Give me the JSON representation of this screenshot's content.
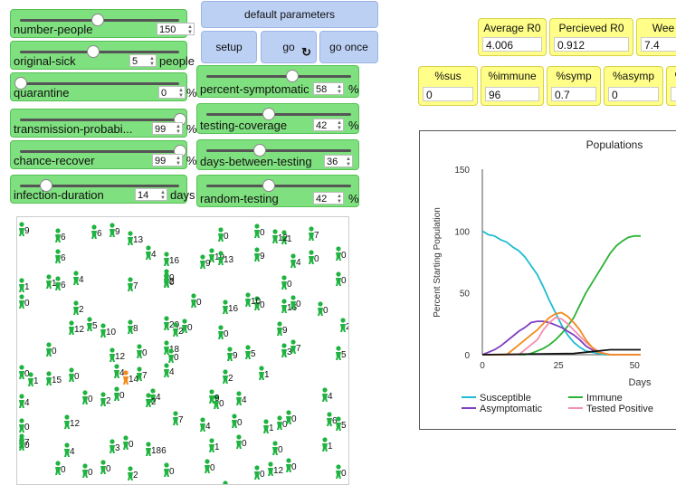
{
  "sliders": [
    {
      "id": "number-people",
      "label": "number-people",
      "value": "150",
      "unit": "",
      "frac": 0.48
    },
    {
      "id": "original-sick",
      "label": "original-sick",
      "value": "5",
      "unit": "people",
      "frac": 0.45
    },
    {
      "id": "quarantine",
      "label": "quarantine",
      "value": "0",
      "unit": "%",
      "frac": 0.0
    },
    {
      "id": "transmission",
      "label": "transmission-probabi...",
      "value": "99",
      "unit": "%",
      "frac": 0.99
    },
    {
      "id": "chance-recover",
      "label": "chance-recover",
      "value": "99",
      "unit": "%",
      "frac": 0.99
    },
    {
      "id": "infection-duration",
      "label": "infection-duration",
      "value": "14",
      "unit": "days",
      "frac": 0.16
    },
    {
      "id": "percent-symptomatic",
      "label": "percent-symptomatic",
      "value": "58",
      "unit": "%",
      "frac": 0.58
    },
    {
      "id": "testing-coverage",
      "label": "testing-coverage",
      "value": "42",
      "unit": "%",
      "frac": 0.42
    },
    {
      "id": "days-between-testing",
      "label": "days-between-testing",
      "value": "36",
      "unit": "",
      "frac": 0.36
    },
    {
      "id": "random-testing",
      "label": "random-testing",
      "value": "42",
      "unit": "%",
      "frac": 0.42
    }
  ],
  "buttons": {
    "defaults": "default parameters",
    "setup": "setup",
    "go": "go",
    "go_once": "go once"
  },
  "monitors": [
    {
      "id": "average-r0",
      "label": "Average R0",
      "value": "4.006"
    },
    {
      "id": "perceived-r0",
      "label": "Percieved R0",
      "value": "0.912"
    },
    {
      "id": "weeks",
      "label": "Wee",
      "value": "7.4"
    },
    {
      "id": "pct-sus",
      "label": "%sus",
      "value": "0"
    },
    {
      "id": "pct-immune",
      "label": "%immune",
      "value": "96"
    },
    {
      "id": "pct-symp",
      "label": "%symp",
      "value": "0.7"
    },
    {
      "id": "pct-asymp",
      "label": "%asymp",
      "value": "0"
    },
    {
      "id": "pct-extra",
      "label": "%",
      "value": ""
    }
  ],
  "world": {
    "agent_color": "#1fb340",
    "infected_color": "#f28a1c",
    "people": [
      [
        "5",
        "9"
      ],
      [
        "45",
        "6"
      ],
      [
        "85",
        "6"
      ],
      [
        "125",
        "13"
      ],
      [
        "225",
        "0"
      ],
      [
        "265",
        "0"
      ],
      [
        "295",
        "1"
      ],
      [
        "325",
        "7"
      ],
      [
        "105",
        "9"
      ],
      [
        "285",
        "12"
      ],
      [
        "45",
        "6"
      ],
      [
        "145",
        "4"
      ],
      [
        "165",
        "16"
      ],
      [
        "215",
        "19"
      ],
      [
        "205",
        "9"
      ],
      [
        "225",
        "13"
      ],
      [
        "265",
        "9"
      ],
      [
        "305",
        "4"
      ],
      [
        "325",
        "0"
      ],
      [
        "355",
        "0"
      ],
      [
        "45",
        "6"
      ],
      [
        "165",
        "2"
      ],
      [
        "165",
        "0"
      ],
      [
        "295",
        "0"
      ],
      [
        "355",
        "0"
      ],
      [
        "5",
        "1"
      ],
      [
        "35",
        "1"
      ],
      [
        "65",
        "4"
      ],
      [
        "125",
        "7"
      ],
      [
        "165",
        "0"
      ],
      [
        "195",
        "0"
      ],
      [
        "230",
        "16"
      ],
      [
        "265",
        "0"
      ],
      [
        "255",
        "10"
      ],
      [
        "295",
        "16"
      ],
      [
        "305",
        "0"
      ],
      [
        "335",
        "0"
      ],
      [
        "375",
        "6"
      ],
      [
        "5",
        "0"
      ],
      [
        "65",
        "2"
      ],
      [
        "60",
        "12"
      ],
      [
        "80",
        "5"
      ],
      [
        "95",
        "10"
      ],
      [
        "125",
        "8"
      ],
      [
        "165",
        "20"
      ],
      [
        "175",
        "2"
      ],
      [
        "185",
        "0"
      ],
      [
        "225",
        "0"
      ],
      [
        "290",
        "9"
      ],
      [
        "360",
        "2"
      ],
      [
        "105",
        "12"
      ],
      [
        "135",
        "0"
      ],
      [
        "165",
        "18"
      ],
      [
        "235",
        "9"
      ],
      [
        "295",
        "3"
      ],
      [
        "305",
        "7"
      ],
      [
        "355",
        "5"
      ],
      [
        "35",
        "0"
      ],
      [
        "170",
        "0"
      ],
      [
        "255",
        "5"
      ],
      [
        "5",
        "0"
      ],
      [
        "35",
        "15"
      ],
      [
        "60",
        "0"
      ],
      [
        "110",
        "4"
      ],
      [
        "120",
        "14"
      ],
      [
        "135",
        "7"
      ],
      [
        "165",
        "4"
      ],
      [
        "230",
        "2"
      ],
      [
        "270",
        "1"
      ],
      [
        "15",
        "1"
      ],
      [
        "95",
        "2"
      ],
      [
        "150",
        "4"
      ],
      [
        "220",
        "0"
      ],
      [
        "245",
        "4"
      ],
      [
        "340",
        "4"
      ],
      [
        "5",
        "4"
      ],
      [
        "75",
        "0"
      ],
      [
        "110",
        "0"
      ],
      [
        "145",
        "2"
      ],
      [
        "215",
        "9"
      ],
      [
        "275",
        "1"
      ],
      [
        "290",
        "0"
      ],
      [
        "345",
        "6"
      ],
      [
        "5",
        "0"
      ],
      [
        "55",
        "12"
      ],
      [
        "175",
        "7"
      ],
      [
        "205",
        "4"
      ],
      [
        "240",
        "0"
      ],
      [
        "300",
        "0"
      ],
      [
        "355",
        "5"
      ],
      [
        "5",
        "0"
      ],
      [
        "55",
        "4"
      ],
      [
        "105",
        "3"
      ],
      [
        "120",
        "0"
      ],
      [
        "145",
        "186"
      ],
      [
        "215",
        "1"
      ],
      [
        "245",
        "0"
      ],
      [
        "285",
        "0"
      ],
      [
        "340",
        "1"
      ],
      [
        "5",
        "7"
      ],
      [
        "75",
        "0"
      ],
      [
        "95",
        "0"
      ],
      [
        "125",
        "2"
      ],
      [
        "165",
        "0"
      ],
      [
        "210",
        "0"
      ],
      [
        "265",
        "0"
      ],
      [
        "280",
        "12"
      ],
      [
        "300",
        "0"
      ],
      [
        "355",
        "0"
      ],
      [
        "45",
        "0"
      ],
      [
        "230",
        "0"
      ],
      [
        "325",
        "0"
      ]
    ]
  },
  "chart_data": {
    "type": "line",
    "title": "Populations",
    "xlabel": "Days",
    "ylabel": "Percent Starting Population",
    "xlim": [
      0,
      52
    ],
    "ylim": [
      0,
      150
    ],
    "x_ticks": [
      "0",
      "25",
      "50"
    ],
    "y_ticks": [
      "0",
      "50",
      "100",
      "150"
    ],
    "legend_position": "bottom",
    "series": [
      {
        "name": "Susceptible",
        "color": "#1fbcd2",
        "points": [
          [
            0,
            100
          ],
          [
            2,
            97
          ],
          [
            4,
            96
          ],
          [
            6,
            93
          ],
          [
            8,
            91
          ],
          [
            10,
            87
          ],
          [
            12,
            84
          ],
          [
            14,
            79
          ],
          [
            16,
            72
          ],
          [
            18,
            65
          ],
          [
            20,
            55
          ],
          [
            22,
            44
          ],
          [
            24,
            34
          ],
          [
            26,
            24
          ],
          [
            28,
            16
          ],
          [
            30,
            10
          ],
          [
            32,
            6
          ],
          [
            34,
            3
          ],
          [
            36,
            2
          ],
          [
            38,
            1
          ],
          [
            40,
            0
          ],
          [
            45,
            0
          ],
          [
            52,
            0
          ]
        ]
      },
      {
        "name": "Immune",
        "color": "#2bb235",
        "points": [
          [
            0,
            0
          ],
          [
            10,
            0
          ],
          [
            14,
            0
          ],
          [
            16,
            1
          ],
          [
            18,
            3
          ],
          [
            20,
            5
          ],
          [
            22,
            8
          ],
          [
            24,
            12
          ],
          [
            26,
            17
          ],
          [
            28,
            23
          ],
          [
            30,
            30
          ],
          [
            32,
            40
          ],
          [
            34,
            50
          ],
          [
            36,
            58
          ],
          [
            38,
            66
          ],
          [
            40,
            74
          ],
          [
            42,
            82
          ],
          [
            44,
            88
          ],
          [
            46,
            92
          ],
          [
            48,
            95
          ],
          [
            50,
            96
          ],
          [
            52,
            96
          ]
        ]
      },
      {
        "name": "Asymptomatic",
        "color": "#7f3fbf",
        "points": [
          [
            0,
            0
          ],
          [
            2,
            2
          ],
          [
            4,
            4
          ],
          [
            6,
            7
          ],
          [
            8,
            11
          ],
          [
            10,
            15
          ],
          [
            12,
            19
          ],
          [
            14,
            22
          ],
          [
            16,
            26
          ],
          [
            18,
            27
          ],
          [
            20,
            27
          ],
          [
            22,
            26
          ],
          [
            24,
            24
          ],
          [
            26,
            22
          ],
          [
            28,
            19
          ],
          [
            30,
            16
          ],
          [
            32,
            12
          ],
          [
            34,
            7
          ],
          [
            36,
            4
          ],
          [
            38,
            2
          ],
          [
            40,
            1
          ],
          [
            42,
            0
          ],
          [
            52,
            0
          ]
        ]
      },
      {
        "name": "Tested Positive",
        "color": "#f48fb1",
        "points": [
          [
            0,
            0
          ],
          [
            12,
            0
          ],
          [
            14,
            4
          ],
          [
            16,
            8
          ],
          [
            18,
            12
          ],
          [
            20,
            20
          ],
          [
            22,
            26
          ],
          [
            24,
            30
          ],
          [
            26,
            29
          ],
          [
            28,
            25
          ],
          [
            30,
            20
          ],
          [
            32,
            15
          ],
          [
            34,
            10
          ],
          [
            36,
            6
          ],
          [
            38,
            3
          ],
          [
            40,
            1
          ],
          [
            42,
            0
          ],
          [
            52,
            0
          ]
        ]
      },
      {
        "name": "",
        "color": "#f28a1c",
        "points": [
          [
            0,
            0
          ],
          [
            8,
            0
          ],
          [
            10,
            4
          ],
          [
            12,
            8
          ],
          [
            14,
            12
          ],
          [
            16,
            16
          ],
          [
            18,
            20
          ],
          [
            20,
            25
          ],
          [
            22,
            30
          ],
          [
            24,
            33
          ],
          [
            26,
            34
          ],
          [
            28,
            31
          ],
          [
            30,
            26
          ],
          [
            32,
            20
          ],
          [
            34,
            12
          ],
          [
            36,
            6
          ],
          [
            38,
            2
          ],
          [
            40,
            1
          ],
          [
            42,
            0
          ],
          [
            52,
            0
          ]
        ]
      },
      {
        "name": "",
        "color": "#111111",
        "points": [
          [
            0,
            0
          ],
          [
            30,
            1
          ],
          [
            34,
            2
          ],
          [
            38,
            3
          ],
          [
            42,
            4
          ],
          [
            46,
            4
          ],
          [
            52,
            4
          ]
        ]
      }
    ]
  }
}
